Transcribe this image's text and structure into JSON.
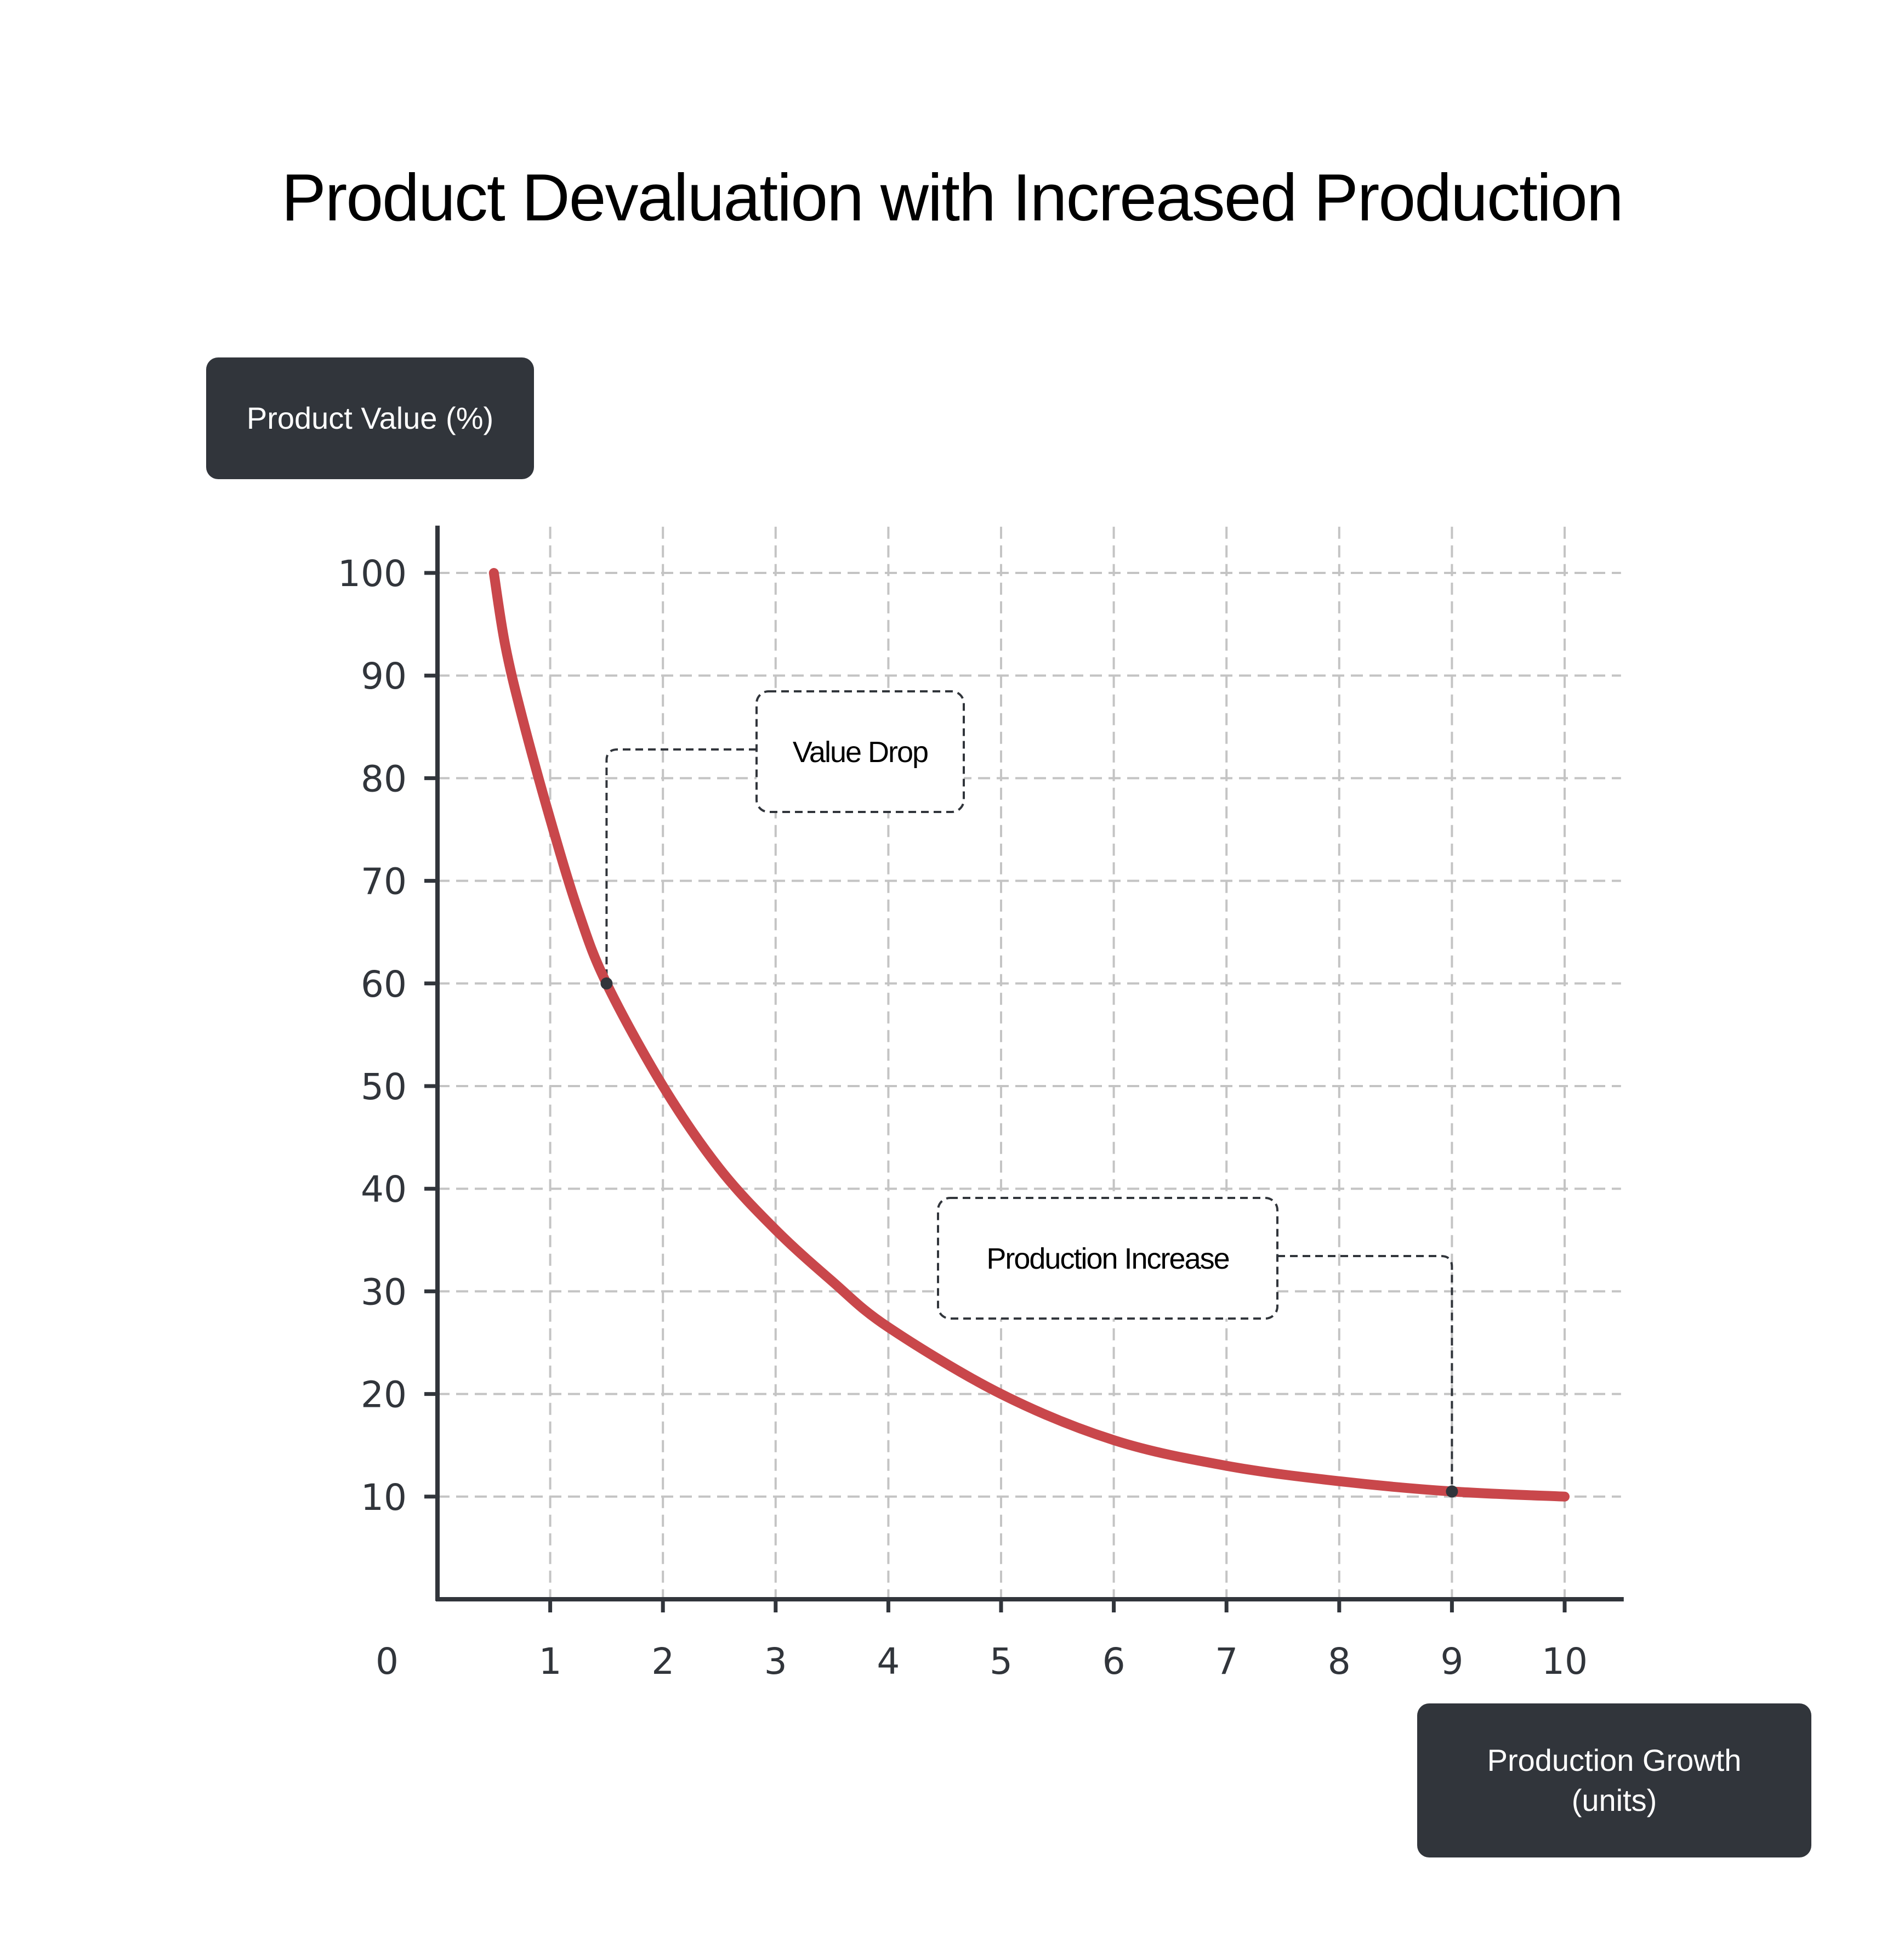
{
  "chart_data": {
    "type": "line",
    "title": "Product Devaluation with Increased Production",
    "ylabel": "Product Value (%)",
    "xlabel_lines": [
      "Production Growth",
      "(units)"
    ],
    "origin_label": "0",
    "x_ticks": [
      1,
      2,
      3,
      4,
      5,
      6,
      7,
      8,
      9,
      10
    ],
    "y_ticks": [
      10,
      20,
      30,
      40,
      50,
      60,
      70,
      80,
      90,
      100
    ],
    "xlim": [
      0,
      10.5
    ],
    "ylim": [
      0,
      104.5
    ],
    "grid": true,
    "series": [
      {
        "color": "#c9474b",
        "x": [
          0.5,
          0.6,
          0.75,
          1.0,
          1.25,
          1.5,
          2.0,
          2.5,
          3.0,
          3.5,
          4.0,
          5.0,
          6.0,
          7.0,
          8.0,
          9.0,
          10.0
        ],
        "y": [
          100,
          93,
          86,
          76,
          67,
          60,
          50,
          42,
          36,
          31,
          26.5,
          20,
          15.5,
          13,
          11.5,
          10.5,
          10
        ]
      }
    ],
    "annotations": [
      {
        "text": "Value Drop",
        "point": [
          1.5,
          60
        ]
      },
      {
        "text": "Production Increase",
        "point": [
          9.0,
          10.5
        ]
      }
    ]
  },
  "colors": {
    "curve": "#c9474b",
    "axis": "#31353b",
    "grid": "#c4c4c4",
    "label_box": "#31353b"
  }
}
